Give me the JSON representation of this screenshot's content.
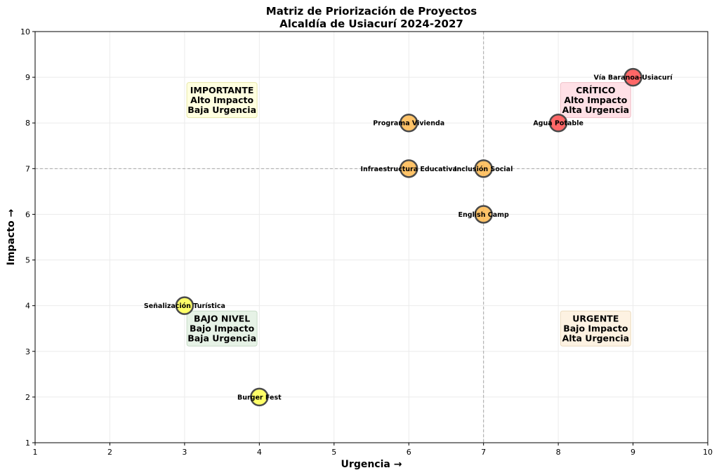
{
  "chart_data": {
    "type": "scatter",
    "title": [
      "Matriz de Priorización de Proyectos",
      "Alcaldía de Usiacurí 2024-2027"
    ],
    "xlabel": "Urgencia →",
    "ylabel": "Impacto →",
    "xlim": [
      1,
      10
    ],
    "ylim": [
      1,
      10
    ],
    "xticks": [
      1,
      2,
      3,
      4,
      5,
      6,
      7,
      8,
      9,
      10
    ],
    "yticks": [
      1,
      2,
      3,
      4,
      5,
      6,
      7,
      8,
      9,
      10
    ],
    "grid": true,
    "thresholds": {
      "x": 7,
      "y": 7
    },
    "points": [
      {
        "name": "Vía Baranoa-Usiacurí",
        "x": 9,
        "y": 9,
        "color": "#ff4d4d"
      },
      {
        "name": "Agua Potable",
        "x": 8,
        "y": 8,
        "color": "#ff4d4d"
      },
      {
        "name": "Programa Vivienda",
        "x": 6,
        "y": 8,
        "color": "#ffb84d"
      },
      {
        "name": "Infraestructura Educativa",
        "x": 6,
        "y": 7,
        "color": "#ffb84d"
      },
      {
        "name": "Inclusión Social",
        "x": 7,
        "y": 7,
        "color": "#ffb84d"
      },
      {
        "name": "English Camp",
        "x": 7,
        "y": 6,
        "color": "#ffb84d"
      },
      {
        "name": "Señalización Turística",
        "x": 3,
        "y": 4,
        "color": "#ffff4d"
      },
      {
        "name": "Burger Fest",
        "x": 4,
        "y": 2,
        "color": "#ffff4d"
      }
    ],
    "quadrants": [
      {
        "lines": [
          "IMPORTANTE",
          "Alto Impacto",
          "Baja Urgencia"
        ],
        "x": 3.5,
        "y": 8.5,
        "fill": "#ffffe0",
        "edge": "#e8e8a8"
      },
      {
        "lines": [
          "CRÍTICO",
          "Alto Impacto",
          "Alta Urgencia"
        ],
        "x": 8.5,
        "y": 8.5,
        "fill": "#ffe0e6",
        "edge": "#f0c0c8"
      },
      {
        "lines": [
          "BAJO NIVEL",
          "Bajo Impacto",
          "Baja Urgencia"
        ],
        "x": 3.5,
        "y": 3.5,
        "fill": "#e6f2e6",
        "edge": "#c8dcc8"
      },
      {
        "lines": [
          "URGENTE",
          "Bajo Impacto",
          "Alta Urgencia"
        ],
        "x": 8.5,
        "y": 3.5,
        "fill": "#fdf2e2",
        "edge": "#ecdcc0"
      }
    ]
  }
}
